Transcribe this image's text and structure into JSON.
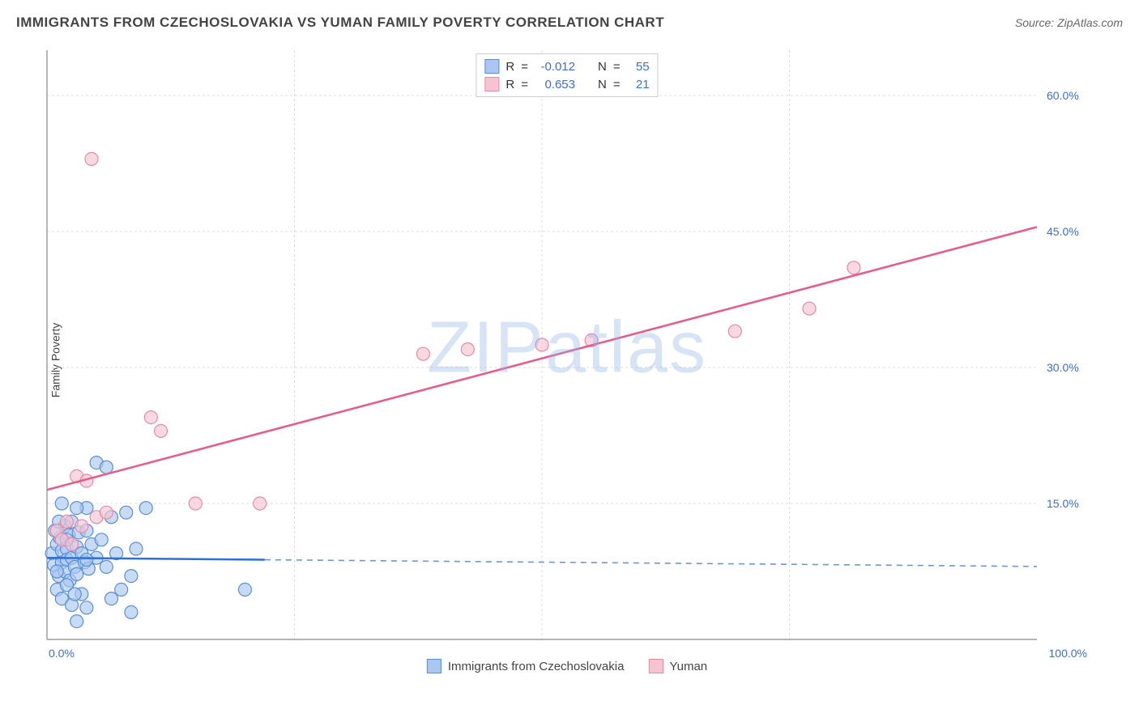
{
  "header": {
    "title": "IMMIGRANTS FROM CZECHOSLOVAKIA VS YUMAN FAMILY POVERTY CORRELATION CHART",
    "source": "Source: ZipAtlas.com"
  },
  "watermark": "ZIPatlas",
  "chart": {
    "type": "scatter",
    "background_color": "#ffffff",
    "grid_color": "#dddddd",
    "axis_color": "#888888",
    "tick_label_color": "#3b6fd8",
    "tick_fontsize": 14,
    "y_label": "Family Poverty",
    "y_label_fontsize": 14,
    "y_label_color": "#444444",
    "xlim": [
      0,
      100
    ],
    "ylim": [
      0,
      65
    ],
    "x_ticks": [
      {
        "value": 0,
        "label": "0.0%"
      },
      {
        "value": 100,
        "label": "100.0%"
      }
    ],
    "y_ticks": [
      {
        "value": 15,
        "label": "15.0%"
      },
      {
        "value": 30,
        "label": "30.0%"
      },
      {
        "value": 45,
        "label": "45.0%"
      },
      {
        "value": 60,
        "label": "60.0%"
      }
    ],
    "x_gridlines": [
      25,
      50,
      75
    ],
    "series": [
      {
        "name": "Immigrants from Czechoslovakia",
        "marker_color": "#a9c7f0",
        "marker_border": "#5a8fd6",
        "marker_opacity": 0.65,
        "marker_radius": 8,
        "trend": {
          "slope": -0.0095,
          "intercept": 9.0,
          "solid_until": 22,
          "line_color": "#2f6fd6",
          "line_width": 2.5,
          "dash_color": "#6a97d6"
        },
        "R": "-0.012",
        "N": "55",
        "points": [
          [
            0.5,
            9.5
          ],
          [
            0.7,
            8.2
          ],
          [
            1.0,
            10.5
          ],
          [
            1.2,
            7.0
          ],
          [
            1.3,
            11.2
          ],
          [
            1.5,
            9.8
          ],
          [
            1.5,
            8.5
          ],
          [
            1.8,
            12.5
          ],
          [
            1.8,
            7.5
          ],
          [
            2.0,
            10.0
          ],
          [
            2.0,
            8.8
          ],
          [
            2.2,
            11.5
          ],
          [
            2.3,
            6.5
          ],
          [
            2.5,
            9.0
          ],
          [
            2.5,
            13.0
          ],
          [
            2.8,
            8.0
          ],
          [
            3.0,
            10.2
          ],
          [
            3.0,
            7.2
          ],
          [
            3.2,
            11.8
          ],
          [
            3.5,
            9.5
          ],
          [
            3.5,
            5.0
          ],
          [
            3.8,
            8.5
          ],
          [
            4.0,
            12.0
          ],
          [
            4.0,
            14.5
          ],
          [
            4.2,
            7.8
          ],
          [
            4.5,
            10.5
          ],
          [
            5.0,
            9.0
          ],
          [
            5.0,
            19.5
          ],
          [
            5.5,
            11.0
          ],
          [
            6.0,
            8.0
          ],
          [
            6.0,
            19.0
          ],
          [
            6.5,
            13.5
          ],
          [
            7.0,
            9.5
          ],
          [
            7.5,
            5.5
          ],
          [
            8.0,
            14.0
          ],
          [
            8.5,
            7.0
          ],
          [
            9.0,
            10.0
          ],
          [
            4.0,
            3.5
          ],
          [
            8.5,
            3.0
          ],
          [
            1.0,
            5.5
          ],
          [
            1.5,
            4.5
          ],
          [
            2.0,
            6.0
          ],
          [
            0.8,
            12.0
          ],
          [
            1.2,
            13.0
          ],
          [
            3.0,
            14.5
          ],
          [
            6.5,
            4.5
          ],
          [
            2.5,
            3.8
          ],
          [
            10.0,
            14.5
          ],
          [
            2.0,
            11.0
          ],
          [
            1.0,
            7.5
          ],
          [
            4.0,
            8.8
          ],
          [
            20.0,
            5.5
          ],
          [
            3.0,
            2.0
          ],
          [
            1.5,
            15.0
          ],
          [
            2.8,
            5.0
          ]
        ]
      },
      {
        "name": "Yuman",
        "marker_color": "#f6c4d1",
        "marker_border": "#e78aa6",
        "marker_opacity": 0.65,
        "marker_radius": 8,
        "trend": {
          "slope": 0.29,
          "intercept": 16.5,
          "solid_until": 100,
          "line_color": "#e85a88",
          "line_width": 2.5
        },
        "R": " 0.653",
        "N": "21",
        "points": [
          [
            1.0,
            12.0
          ],
          [
            2.0,
            13.0
          ],
          [
            1.5,
            11.0
          ],
          [
            2.5,
            10.5
          ],
          [
            3.0,
            18.0
          ],
          [
            4.0,
            17.5
          ],
          [
            5.0,
            13.5
          ],
          [
            6.0,
            14.0
          ],
          [
            10.5,
            24.5
          ],
          [
            11.5,
            23.0
          ],
          [
            15.0,
            15.0
          ],
          [
            21.5,
            15.0
          ],
          [
            38.0,
            31.5
          ],
          [
            42.5,
            32.0
          ],
          [
            50.0,
            32.5
          ],
          [
            55.0,
            33.0
          ],
          [
            69.5,
            34.0
          ],
          [
            77.0,
            36.5
          ],
          [
            81.5,
            41.0
          ],
          [
            4.5,
            53.0
          ],
          [
            3.5,
            12.5
          ]
        ]
      }
    ],
    "legend_bottom": [
      {
        "label": "Immigrants from Czechoslovakia",
        "fill": "#a9c7f0",
        "border": "#5a8fd6"
      },
      {
        "label": "Yuman",
        "fill": "#f6c4d1",
        "border": "#e78aa6"
      }
    ]
  }
}
